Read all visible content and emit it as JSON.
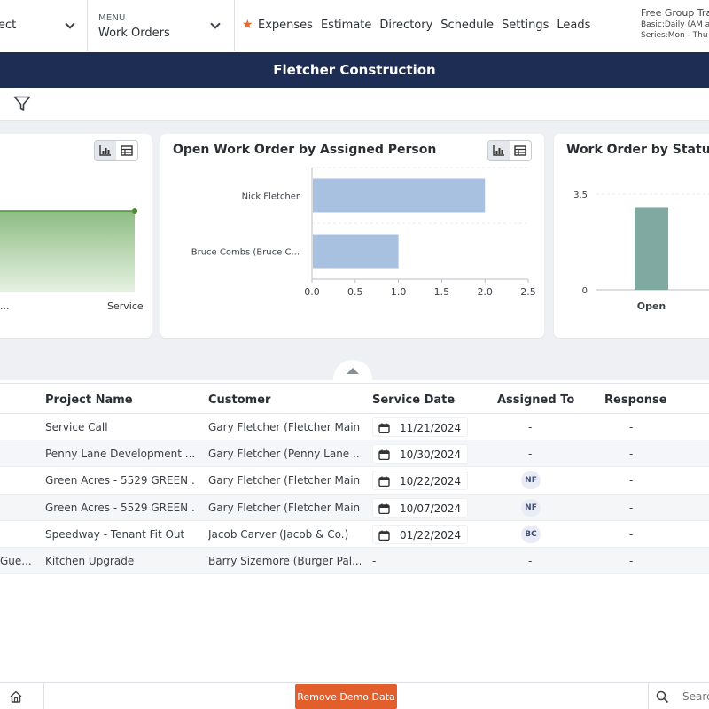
{
  "topbar": {
    "project_select": {
      "value": "ect"
    },
    "menu_select": {
      "label": "MENU",
      "value": "Work Orders"
    },
    "nav": [
      "Expenses",
      "Estimate",
      "Directory",
      "Schedule",
      "Settings",
      "Leads"
    ],
    "trial": {
      "line1": "Free Group Tra",
      "line2": "Basic:Daily (AM a",
      "line3": "Series:Mon - Thu"
    }
  },
  "page_title": "Fletcher Construction",
  "cards": [
    {
      "title": "",
      "chart_data": {
        "type": "area",
        "categories": [
          "...",
          "Service"
        ]
      }
    },
    {
      "title": "Open Work Order by Assigned Person",
      "chart_data": {
        "type": "bar",
        "orientation": "horizontal",
        "categories": [
          "Nick Fletcher",
          "Bruce Combs (Bruce C..."
        ],
        "values": [
          2,
          1
        ],
        "xlim": [
          0,
          2.5
        ],
        "xticks": [
          "0.0",
          "0.5",
          "1.0",
          "1.5",
          "2.0",
          "2.5"
        ],
        "grid": true,
        "color": "#a9c1e1"
      }
    },
    {
      "title": "Work Order by Status",
      "chart_data": {
        "type": "bar",
        "categories": [
          "Open"
        ],
        "values": [
          3
        ],
        "ylim": [
          0,
          3.5
        ],
        "yticks": [
          "0",
          "3.5"
        ],
        "color": "#7fa9a1"
      }
    }
  ],
  "table": {
    "columns": [
      "Project Name",
      "Customer",
      "Service Date",
      "Assigned To",
      "Response"
    ],
    "rows": [
      {
        "c0": "",
        "project": "Service Call",
        "customer": "Gary Fletcher (Fletcher Main)",
        "date": "11/21/2024",
        "assigned": "-",
        "response": "-"
      },
      {
        "c0": "",
        "project": "Penny Lane Development ...",
        "customer": "Gary Fletcher (Penny Lane ...",
        "date": "10/30/2024",
        "assigned": "-",
        "response": "-"
      },
      {
        "c0": "",
        "project": "Green Acres - 5529 GREEN ...",
        "customer": "Gary Fletcher (Fletcher Main)",
        "date": "10/22/2024",
        "assigned": "NF",
        "response": "-"
      },
      {
        "c0": "",
        "project": "Green Acres - 5529 GREEN ...",
        "customer": "Gary Fletcher (Fletcher Main)",
        "date": "10/07/2024",
        "assigned": "NF",
        "response": "-"
      },
      {
        "c0": "",
        "project": "Speedway - Tenant Fit Out",
        "customer": "Jacob Carver (Jacob & Co.)",
        "date": "01/22/2024",
        "assigned": "BC",
        "response": "-"
      },
      {
        "c0": "Gue...",
        "project": "Kitchen Upgrade",
        "customer": "Barry Sizemore (Burger Pal...",
        "date": "-",
        "assigned": "-",
        "response": "-"
      }
    ]
  },
  "bottombar": {
    "remove_label": "Remove Demo Data",
    "search_placeholder": "Search"
  },
  "colors": {
    "navy": "#1e2d54",
    "accent": "#e25e2a",
    "area_line": "#4f8b3a"
  },
  "icons": [
    "chevron-down-icon",
    "star-icon",
    "filter-icon",
    "bar-chart-icon",
    "table-icon",
    "calendar-icon",
    "home-icon",
    "search-icon"
  ]
}
